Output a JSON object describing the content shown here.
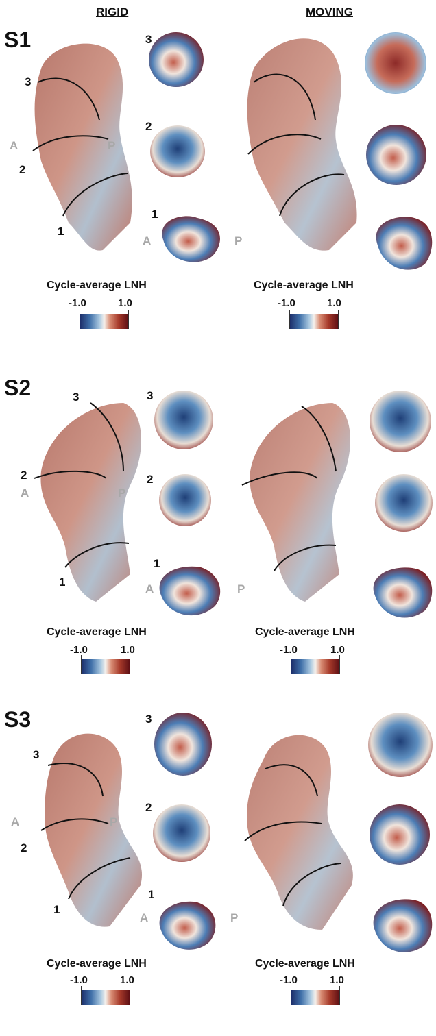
{
  "headers": {
    "rigid": "RIGID",
    "moving": "MOVING"
  },
  "panels": [
    {
      "id": "S1",
      "label": "S1"
    },
    {
      "id": "S2",
      "label": "S2"
    },
    {
      "id": "S3",
      "label": "S3"
    }
  ],
  "section_labels": [
    "1",
    "2",
    "3"
  ],
  "orientation": {
    "anterior": "A",
    "posterior": "P"
  },
  "colorbar": {
    "title": "Cycle-average LNH",
    "min_label": "-1.0",
    "max_label": "1.0",
    "min": -1.0,
    "max": 1.0,
    "colors": [
      "#1d2f6b",
      "#3f6fa8",
      "#a9c8e0",
      "#f5f1ec",
      "#d98d75",
      "#a63a2a",
      "#5e0f14"
    ]
  }
}
